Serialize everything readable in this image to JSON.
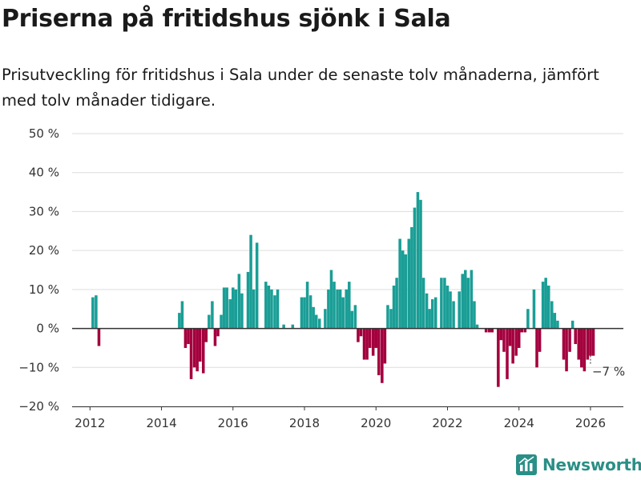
{
  "title": "Priserna på fritidshus sjönk i Sala",
  "subtitle": "Prisutveckling för fritidshus i Sala under de senaste tolv månaderna, jämfört med tolv månader tidigare.",
  "brand": {
    "name": "Newsworthy",
    "icon": "newsworthy-logo-icon"
  },
  "colors": {
    "positive": "#1a9e96",
    "negative": "#a3003d",
    "zero_line": "#333333",
    "grid": "#dddddd",
    "brand": "#2a8f86"
  },
  "chart_data": {
    "type": "bar",
    "title": "Priserna på fritidshus sjönk i Sala",
    "xlabel": "",
    "ylabel": "",
    "unit": "%",
    "ylim": [
      -20,
      50
    ],
    "yticks": [
      -20,
      -10,
      0,
      10,
      20,
      30,
      40,
      50
    ],
    "ytick_labels": [
      "−20 %",
      "−10 %",
      "0 %",
      "10 %",
      "20 %",
      "30 %",
      "40 %",
      "50 %"
    ],
    "xlim": [
      2011.5,
      2026.92
    ],
    "xticks": [
      2012,
      2014,
      2016,
      2018,
      2020,
      2022,
      2024,
      2026
    ],
    "xtick_labels": [
      "2012",
      "2014",
      "2016",
      "2018",
      "2020",
      "2022",
      "2024",
      "2026"
    ],
    "grid": true,
    "annotation": {
      "text": "−7 %",
      "x": 2026.0,
      "y": -7
    },
    "series": [
      {
        "name": "Prisutveckling",
        "points": [
          [
            2012.08,
            8
          ],
          [
            2012.17,
            8.5
          ],
          [
            2012.25,
            -4.5
          ],
          [
            2014.5,
            4
          ],
          [
            2014.58,
            7
          ],
          [
            2014.67,
            -5
          ],
          [
            2014.75,
            -4
          ],
          [
            2014.83,
            -13
          ],
          [
            2014.92,
            -10
          ],
          [
            2015.0,
            -11
          ],
          [
            2015.08,
            -8.5
          ],
          [
            2015.17,
            -11.5
          ],
          [
            2015.25,
            -3.5
          ],
          [
            2015.33,
            3.5
          ],
          [
            2015.42,
            7
          ],
          [
            2015.5,
            -4.5
          ],
          [
            2015.58,
            -2
          ],
          [
            2015.67,
            3.5
          ],
          [
            2015.75,
            10.5
          ],
          [
            2015.83,
            10.5
          ],
          [
            2015.92,
            7.5
          ],
          [
            2016.0,
            10.5
          ],
          [
            2016.08,
            10
          ],
          [
            2016.17,
            14
          ],
          [
            2016.25,
            9
          ],
          [
            2016.42,
            14.5
          ],
          [
            2016.5,
            24
          ],
          [
            2016.58,
            10
          ],
          [
            2016.67,
            22
          ],
          [
            2016.92,
            12
          ],
          [
            2017.0,
            11
          ],
          [
            2017.08,
            10
          ],
          [
            2017.17,
            8.5
          ],
          [
            2017.25,
            10
          ],
          [
            2017.42,
            1
          ],
          [
            2017.67,
            1
          ],
          [
            2017.92,
            8
          ],
          [
            2018.0,
            8
          ],
          [
            2018.08,
            12
          ],
          [
            2018.17,
            8.5
          ],
          [
            2018.25,
            5.5
          ],
          [
            2018.33,
            3.5
          ],
          [
            2018.42,
            2.5
          ],
          [
            2018.58,
            5
          ],
          [
            2018.67,
            10
          ],
          [
            2018.75,
            15
          ],
          [
            2018.83,
            12
          ],
          [
            2018.92,
            10
          ],
          [
            2019.0,
            10
          ],
          [
            2019.08,
            8
          ],
          [
            2019.17,
            10
          ],
          [
            2019.25,
            12
          ],
          [
            2019.33,
            4.5
          ],
          [
            2019.42,
            6
          ],
          [
            2019.5,
            -3.5
          ],
          [
            2019.58,
            -2
          ],
          [
            2019.67,
            -8
          ],
          [
            2019.75,
            -8
          ],
          [
            2019.83,
            -5
          ],
          [
            2019.92,
            -7
          ],
          [
            2020.0,
            -5
          ],
          [
            2020.08,
            -12
          ],
          [
            2020.17,
            -14
          ],
          [
            2020.25,
            -9
          ],
          [
            2020.33,
            6
          ],
          [
            2020.42,
            5
          ],
          [
            2020.5,
            11
          ],
          [
            2020.58,
            13
          ],
          [
            2020.67,
            23
          ],
          [
            2020.75,
            20
          ],
          [
            2020.83,
            19
          ],
          [
            2020.92,
            23
          ],
          [
            2021.0,
            26
          ],
          [
            2021.08,
            31
          ],
          [
            2021.17,
            35
          ],
          [
            2021.25,
            33
          ],
          [
            2021.33,
            13
          ],
          [
            2021.42,
            9
          ],
          [
            2021.5,
            5
          ],
          [
            2021.58,
            7.5
          ],
          [
            2021.67,
            8
          ],
          [
            2021.83,
            13
          ],
          [
            2021.92,
            13
          ],
          [
            2022.0,
            11
          ],
          [
            2022.08,
            9.5
          ],
          [
            2022.17,
            7
          ],
          [
            2022.33,
            9.5
          ],
          [
            2022.42,
            14
          ],
          [
            2022.5,
            15
          ],
          [
            2022.58,
            13
          ],
          [
            2022.67,
            15
          ],
          [
            2022.75,
            7
          ],
          [
            2022.83,
            1
          ],
          [
            2023.08,
            -1
          ],
          [
            2023.17,
            -1
          ],
          [
            2023.25,
            -1
          ],
          [
            2023.42,
            -15
          ],
          [
            2023.5,
            -3
          ],
          [
            2023.58,
            -6
          ],
          [
            2023.67,
            -13
          ],
          [
            2023.75,
            -4.5
          ],
          [
            2023.83,
            -9
          ],
          [
            2023.92,
            -7
          ],
          [
            2024.0,
            -5
          ],
          [
            2024.08,
            -1
          ],
          [
            2024.17,
            -1
          ],
          [
            2024.25,
            5
          ],
          [
            2024.42,
            10
          ],
          [
            2024.5,
            -10
          ],
          [
            2024.58,
            -6
          ],
          [
            2024.67,
            12
          ],
          [
            2024.75,
            13
          ],
          [
            2024.83,
            11
          ],
          [
            2024.92,
            7
          ],
          [
            2025.0,
            4
          ],
          [
            2025.08,
            2
          ],
          [
            2025.25,
            -8
          ],
          [
            2025.33,
            -11
          ],
          [
            2025.42,
            -6
          ],
          [
            2025.5,
            2
          ],
          [
            2025.58,
            -4
          ],
          [
            2025.67,
            -8
          ],
          [
            2025.75,
            -10
          ],
          [
            2025.83,
            -11
          ],
          [
            2025.92,
            -8
          ],
          [
            2026.0,
            -7
          ],
          [
            2026.08,
            -7
          ]
        ]
      }
    ]
  }
}
